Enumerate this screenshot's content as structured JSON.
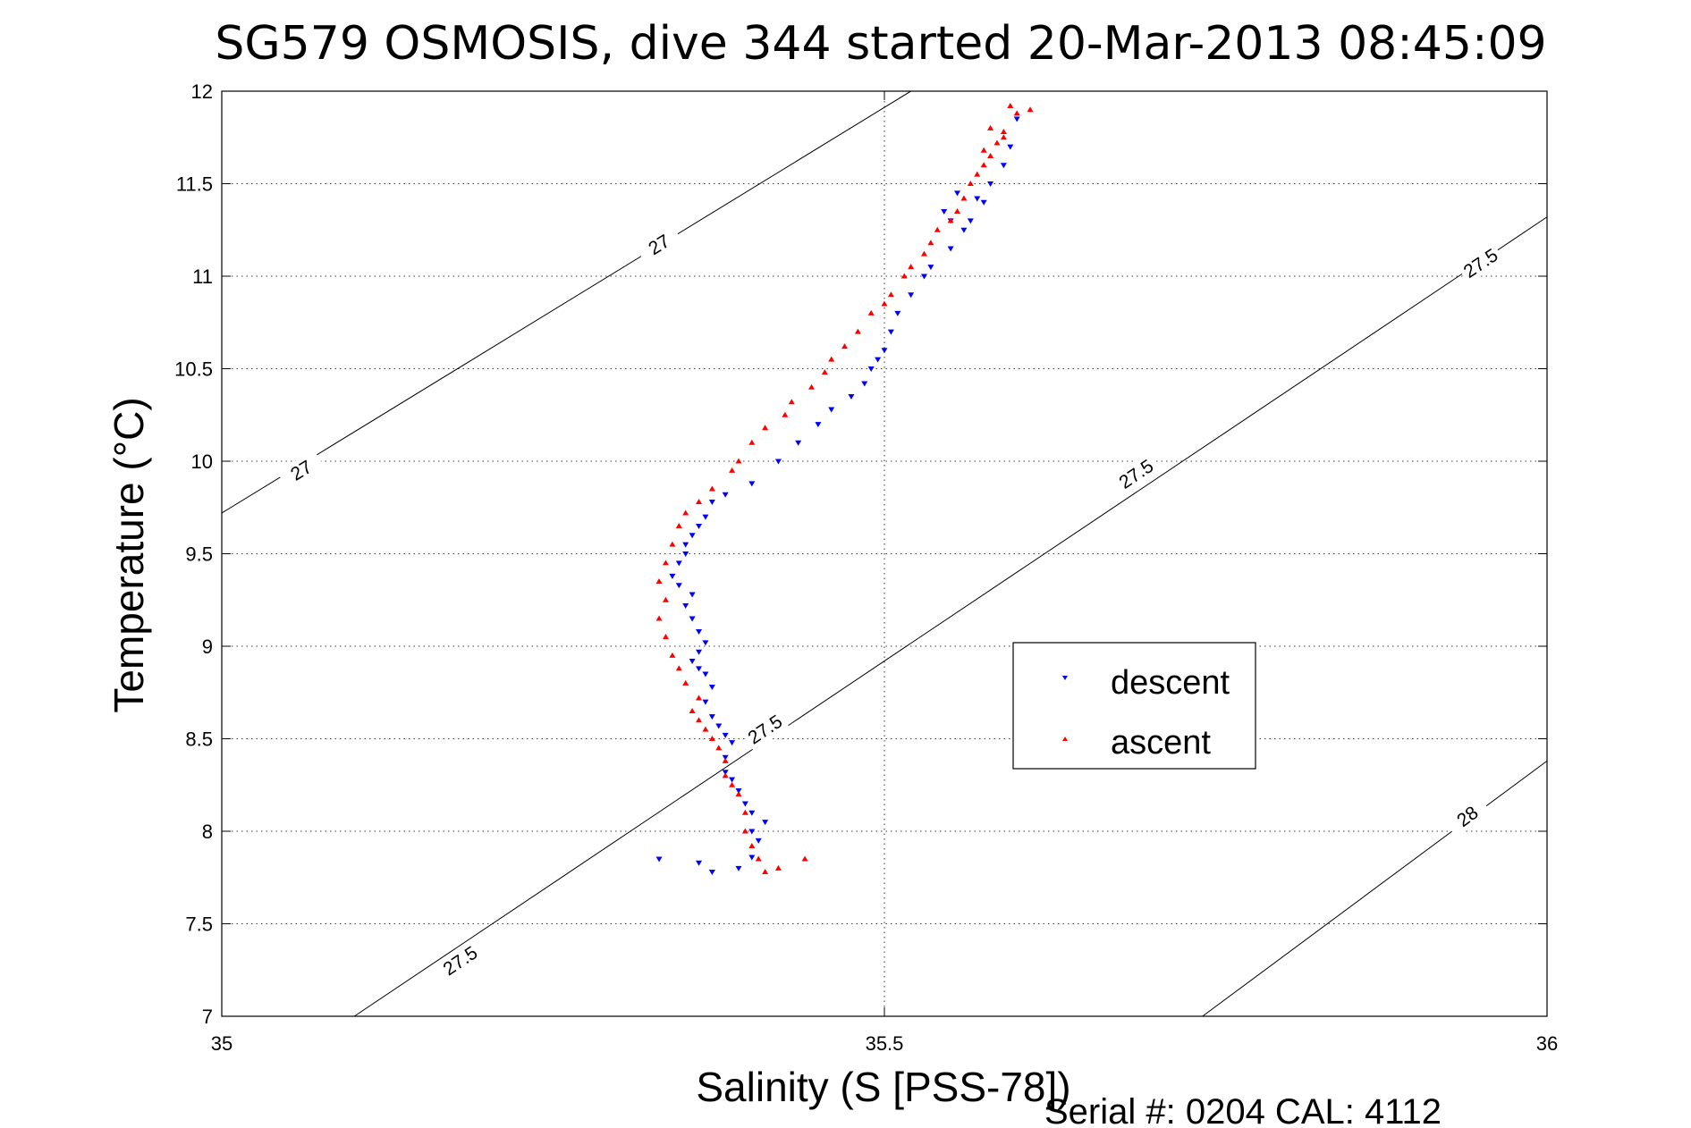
{
  "chart_data": {
    "type": "scatter",
    "title": "SG579 OSMOSIS, dive 344 started 20-Mar-2013 08:45:09",
    "xlabel": "Salinity (S [PSS-78])",
    "ylabel": "Temperature (°C)",
    "xlim": [
      35,
      36
    ],
    "ylim": [
      7,
      12
    ],
    "x_ticks": [
      "35",
      "35.5",
      "36"
    ],
    "y_ticks": [
      "7",
      "7.5",
      "8",
      "8.5",
      "9",
      "9.5",
      "10",
      "10.5",
      "11",
      "11.5",
      "12"
    ],
    "grid": true,
    "legend_position": "center-right",
    "footnote": "Serial #: 0204  CAL: 4112",
    "colors": {
      "descent": "#0000ff",
      "ascent": "#ff0000",
      "contour": "#000000"
    },
    "series": [
      {
        "name": "descent",
        "marker": "triangle-down",
        "x": [
          35.33,
          35.36,
          35.37,
          35.39,
          35.4,
          35.405,
          35.4,
          35.41,
          35.4,
          35.395,
          35.39,
          35.385,
          35.38,
          35.38,
          35.385,
          35.38,
          35.375,
          35.37,
          35.365,
          35.37,
          35.365,
          35.36,
          35.355,
          35.36,
          35.365,
          35.36,
          35.355,
          35.35,
          35.355,
          35.345,
          35.34,
          35.345,
          35.35,
          35.35,
          35.355,
          35.36,
          35.365,
          35.37,
          35.38,
          35.4,
          35.42,
          35.435,
          35.45,
          35.46,
          35.475,
          35.485,
          35.49,
          35.495,
          35.5,
          35.505,
          35.51,
          35.52,
          35.53,
          35.535,
          35.55,
          35.56,
          35.565,
          35.575,
          35.58,
          35.59,
          35.595,
          35.6,
          35.57,
          35.555,
          35.545,
          35.55
        ],
        "y": [
          7.85,
          7.83,
          7.78,
          7.8,
          7.86,
          7.95,
          8.0,
          8.05,
          8.1,
          8.15,
          8.22,
          8.28,
          8.32,
          8.4,
          8.48,
          8.52,
          8.57,
          8.62,
          8.7,
          8.78,
          8.85,
          8.88,
          8.92,
          8.97,
          9.02,
          9.08,
          9.15,
          9.22,
          9.28,
          9.33,
          9.38,
          9.45,
          9.5,
          9.55,
          9.6,
          9.65,
          9.7,
          9.78,
          9.82,
          9.88,
          10.0,
          10.1,
          10.2,
          10.28,
          10.35,
          10.42,
          10.5,
          10.55,
          10.6,
          10.7,
          10.8,
          10.9,
          11.0,
          11.05,
          11.15,
          11.25,
          11.3,
          11.4,
          11.5,
          11.6,
          11.7,
          11.85,
          11.42,
          11.45,
          11.35,
          11.3
        ]
      },
      {
        "name": "ascent",
        "marker": "triangle-up",
        "x": [
          35.44,
          35.42,
          35.41,
          35.405,
          35.4,
          35.395,
          35.395,
          35.39,
          35.385,
          35.38,
          35.38,
          35.375,
          35.37,
          35.365,
          35.36,
          35.355,
          35.36,
          35.35,
          35.345,
          35.34,
          35.335,
          35.33,
          35.335,
          35.33,
          35.335,
          35.34,
          35.345,
          35.35,
          35.36,
          35.37,
          35.385,
          35.39,
          35.4,
          35.41,
          35.425,
          35.43,
          35.445,
          35.455,
          35.46,
          35.47,
          35.48,
          35.49,
          35.505,
          35.5,
          35.515,
          35.52,
          35.53,
          35.535,
          35.54,
          35.55,
          35.555,
          35.56,
          35.565,
          35.57,
          35.575,
          35.58,
          35.585,
          35.59,
          35.6,
          35.595,
          35.58,
          35.575,
          35.59,
          35.61
        ],
        "y": [
          7.85,
          7.8,
          7.78,
          7.85,
          7.92,
          8.0,
          8.1,
          8.2,
          8.25,
          8.3,
          8.38,
          8.45,
          8.5,
          8.55,
          8.6,
          8.65,
          8.72,
          8.8,
          8.88,
          8.95,
          9.05,
          9.15,
          9.25,
          9.35,
          9.45,
          9.55,
          9.65,
          9.72,
          9.78,
          9.85,
          9.95,
          10.0,
          10.1,
          10.18,
          10.25,
          10.32,
          10.4,
          10.48,
          10.55,
          10.62,
          10.7,
          10.8,
          10.9,
          10.85,
          11.0,
          11.05,
          11.12,
          11.18,
          11.25,
          11.3,
          11.35,
          11.42,
          11.5,
          11.55,
          11.6,
          11.65,
          11.72,
          11.78,
          11.88,
          11.92,
          11.8,
          11.68,
          11.75,
          11.9
        ]
      }
    ],
    "contours": [
      {
        "label": "27",
        "x": [
          35,
          35.52
        ],
        "y": [
          9.72,
          12
        ],
        "label_positions": [
          [
            35.06,
            9.95
          ],
          [
            35.33,
            11.17
          ]
        ]
      },
      {
        "label": "27.5",
        "x": [
          35.1,
          36
        ],
        "y": [
          7,
          11.32
        ],
        "label_positions": [
          [
            35.18,
            7.3
          ],
          [
            35.41,
            8.55
          ],
          [
            35.69,
            9.93
          ],
          [
            35.95,
            11.07
          ]
        ]
      },
      {
        "label": "28",
        "x": [
          35.74,
          36
        ],
        "y": [
          7,
          8.38
        ],
        "label_positions": [
          [
            35.94,
            8.08
          ]
        ]
      }
    ]
  }
}
